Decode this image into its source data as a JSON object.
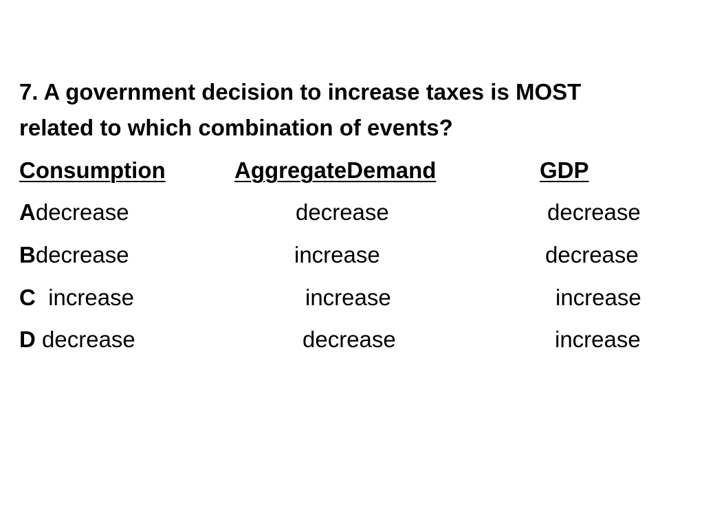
{
  "question": {
    "number": "7.",
    "line1": "7. A government decision to increase taxes is MOST",
    "line2": "related to which combination of events?"
  },
  "columns": {
    "consumption": "Consumption",
    "aggregate_demand": "AggregateDemand",
    "gdp": "GDP"
  },
  "answers": [
    {
      "letter": "A",
      "consumption": "decrease",
      "aggregate_demand": "decrease",
      "gdp": "decrease"
    },
    {
      "letter": "B",
      "consumption": "decrease",
      "aggregate_demand": "increase",
      "gdp": "decrease"
    },
    {
      "letter": "C",
      "consumption": "increase",
      "aggregate_demand": "increase",
      "gdp": "increase"
    },
    {
      "letter": "D",
      "consumption": "decrease",
      "aggregate_demand": "decrease",
      "gdp": "increase"
    }
  ]
}
